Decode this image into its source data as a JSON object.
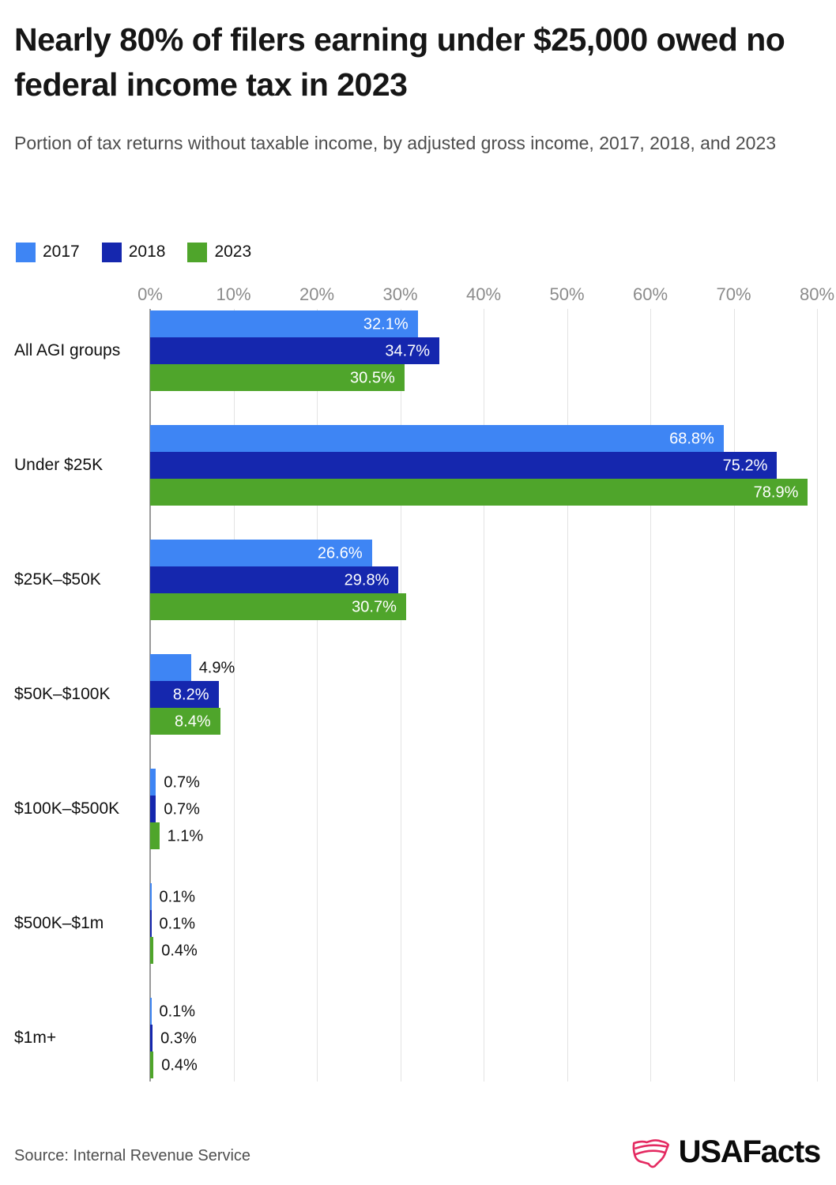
{
  "header": {
    "title": "Nearly 80% of filers earning under $25,000 owed no federal income tax in 2023",
    "subtitle": "Portion of tax returns without taxable income, by adjusted gross income, 2017, 2018, and 2023"
  },
  "chart_data": {
    "type": "bar",
    "orientation": "horizontal",
    "title": "Nearly 80% of filers earning under $25,000 owed no federal income tax in 2023",
    "categories": [
      "All AGI groups",
      "Under $25K",
      "$25K–$50K",
      "$50K–$100K",
      "$100K–$500K",
      "$500K–$1m",
      "$1m+"
    ],
    "series": [
      {
        "name": "2017",
        "color": "#3e85f4",
        "values": [
          32.1,
          68.8,
          26.6,
          4.9,
          0.7,
          0.1,
          0.1
        ]
      },
      {
        "name": "2018",
        "color": "#1527ae",
        "values": [
          34.7,
          75.2,
          29.8,
          8.2,
          0.7,
          0.1,
          0.3
        ]
      },
      {
        "name": "2023",
        "color": "#4fa52b",
        "values": [
          30.5,
          78.9,
          30.7,
          8.4,
          1.1,
          0.4,
          0.4
        ]
      }
    ],
    "x_ticks": [
      "0%",
      "10%",
      "20%",
      "30%",
      "40%",
      "50%",
      "60%",
      "70%",
      "80%"
    ],
    "xlim": [
      0,
      80
    ],
    "value_label_format": "{value}%",
    "grid": true,
    "legend_position": "top-left"
  },
  "footer": {
    "source": "Source: Internal Revenue Service",
    "brand": "USAFacts"
  },
  "colors": {
    "series_2017": "#3e85f4",
    "series_2018": "#1527ae",
    "series_2023": "#4fa52b",
    "gridline": "#e3e3e3",
    "axis": "#9a9a9a",
    "tick_text": "#8b8b8b",
    "brand_pink": "#e42a61"
  }
}
